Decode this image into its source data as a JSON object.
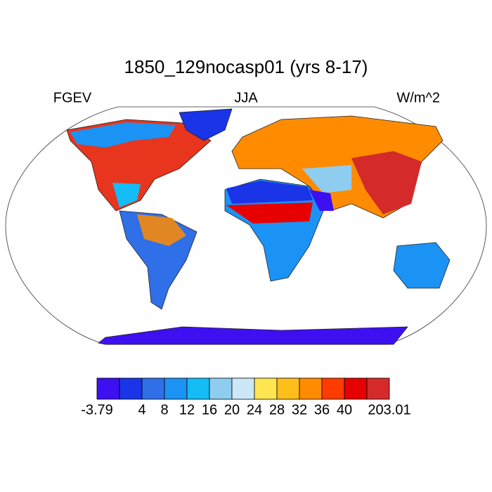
{
  "title": "1850_129nocasp01 (yrs 8-17)",
  "left_label": "FGEV",
  "center_label": "JJA",
  "right_label": "W/m^2",
  "colorbar": {
    "colors": [
      "#3e0ff0",
      "#1a34e8",
      "#2f6fe8",
      "#1b93f5",
      "#14bcf5",
      "#8ecdf0",
      "#cce8f8",
      "#ffe650",
      "#ffbe1a",
      "#ff8c00",
      "#ff3c00",
      "#e60000",
      "#d42a2a"
    ],
    "edges": [
      -3.79,
      null,
      4,
      8,
      12,
      16,
      20,
      24,
      28,
      32,
      36,
      40,
      null,
      203.01
    ]
  }
}
